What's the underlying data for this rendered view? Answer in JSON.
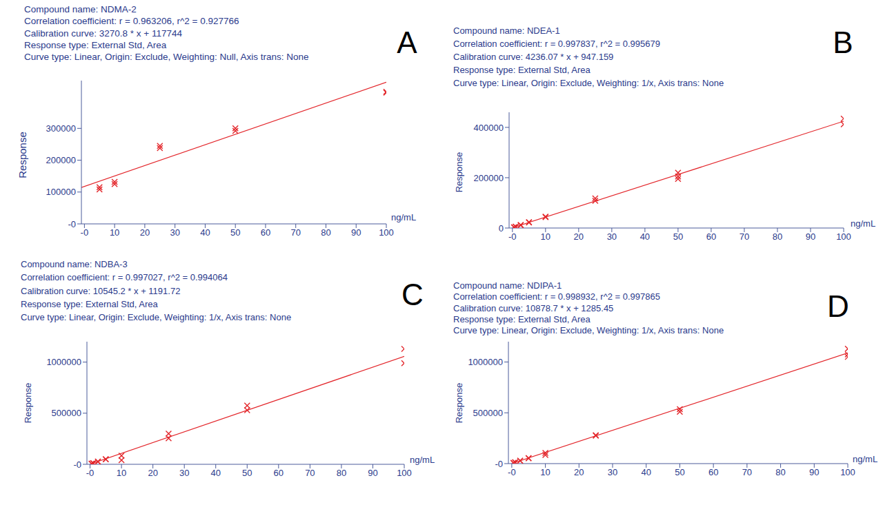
{
  "chart_data": [
    {
      "type": "scatter",
      "panel_label": "A",
      "title": "Compound name: NDMA-2",
      "annotations": [
        "Correlation coefficient: r = 0.963206, r^2 = 0.927766",
        "Calibration curve: 3270.8 * x + 117744",
        "Response type: External Std, Area",
        "Curve type: Linear, Origin: Exclude, Weighting: Null, Axis trans: None"
      ],
      "x_label": "ng/mL",
      "y_label": "Response",
      "grid": false,
      "xlim": [
        -1,
        100
      ],
      "xticks": [
        {
          "value": 0,
          "label": "-0"
        },
        10,
        20,
        30,
        40,
        50,
        60,
        70,
        80,
        90,
        100
      ],
      "ylim": [
        0,
        450000
      ],
      "yticks": [
        {
          "value": 0,
          "label": "-0"
        },
        100000,
        200000,
        300000
      ],
      "series": [
        {
          "type": "scatter",
          "marker": "x",
          "color": "#e3262b",
          "x": [
            5,
            5,
            10,
            10,
            25,
            25,
            50,
            50,
            100,
            100
          ],
          "values": [
            115000,
            108000,
            132000,
            125000,
            245000,
            238000,
            300000,
            292000,
            415000,
            412000
          ]
        },
        {
          "type": "line",
          "line_style": "solid",
          "color": "#e3262b",
          "x": [
            -1,
            100
          ],
          "values": [
            114500,
            444800
          ]
        }
      ]
    },
    {
      "type": "scatter",
      "panel_label": "B",
      "title": "Compound name: NDEA-1",
      "annotations": [
        "Correlation coefficient: r = 0.997837, r^2 = 0.995679",
        "Calibration curve: 4236.07 * x + 947.159",
        "Response type: External Std, Area",
        "Curve type: Linear, Origin: Exclude, Weighting: 1/x, Axis trans: None"
      ],
      "x_label": "ng/mL",
      "y_label": "Response",
      "grid": false,
      "xlim": [
        -1,
        100
      ],
      "xticks": [
        {
          "value": 0,
          "label": "-0"
        },
        10,
        20,
        30,
        40,
        50,
        60,
        70,
        80,
        90,
        100
      ],
      "ylim": [
        0,
        460000
      ],
      "yticks": [
        0,
        200000,
        400000
      ],
      "series": [
        {
          "type": "scatter",
          "marker": "x",
          "color": "#e3262b",
          "x": [
            0.5,
            0.5,
            1,
            1,
            2.5,
            2.5,
            5,
            5,
            10,
            10,
            25,
            25,
            50,
            50,
            50,
            100,
            100
          ],
          "values": [
            3000,
            2500,
            5000,
            5500,
            11000,
            12000,
            22000,
            23000,
            43000,
            45000,
            118000,
            108000,
            220000,
            195000,
            205000,
            435000,
            412000
          ]
        },
        {
          "type": "line",
          "line_style": "solid",
          "color": "#e3262b",
          "x": [
            0,
            100
          ],
          "values": [
            1000,
            424500
          ]
        }
      ]
    },
    {
      "type": "scatter",
      "panel_label": "C",
      "title": "Compound name: NDBA-3",
      "annotations": [
        "Correlation coefficient: r = 0.997027, r^2 = 0.994064",
        "Calibration curve: 10545.2 * x + 1191.72",
        "Response type: External Std, Area",
        "Curve type: Linear, Origin: Exclude, Weighting: 1/x, Axis trans: None"
      ],
      "x_label": "ng/mL",
      "y_label": "Response",
      "grid": false,
      "xlim": [
        -1,
        100
      ],
      "xticks": [
        {
          "value": 0,
          "label": "-0"
        },
        10,
        20,
        30,
        40,
        50,
        60,
        70,
        80,
        90,
        100
      ],
      "ylim": [
        0,
        1200000
      ],
      "yticks": [
        {
          "value": 0,
          "label": "-0"
        },
        500000,
        1000000
      ],
      "series": [
        {
          "type": "scatter",
          "marker": "x",
          "color": "#e3262b",
          "x": [
            0.5,
            0.5,
            1,
            1,
            2.5,
            2.5,
            5,
            5,
            10,
            10,
            25,
            25,
            50,
            50,
            100,
            100
          ],
          "values": [
            5000,
            6000,
            10000,
            12000,
            25000,
            27000,
            50000,
            48000,
            85000,
            40000,
            300000,
            255000,
            575000,
            530000,
            1130000,
            990000
          ]
        },
        {
          "type": "line",
          "line_style": "solid",
          "color": "#e3262b",
          "x": [
            0,
            100
          ],
          "values": [
            1200,
            1055700
          ]
        }
      ]
    },
    {
      "type": "scatter",
      "panel_label": "D",
      "title": "Compound name: NDIPA-1",
      "annotations": [
        "Correlation coefficient: r = 0.998932, r^2 = 0.997865",
        "Calibration curve: 10878.7 * x + 1285.45",
        "Response type: External Std, Area",
        "Curve type: Linear, Origin: Exclude, Weighting: 1/x, Axis trans: None"
      ],
      "x_label": "ng/mL",
      "y_label": "Response",
      "grid": false,
      "xlim": [
        -1,
        100
      ],
      "xticks": [
        {
          "value": 0,
          "label": "-0"
        },
        10,
        20,
        30,
        40,
        50,
        60,
        70,
        80,
        90,
        100
      ],
      "ylim": [
        0,
        1200000
      ],
      "yticks": [
        {
          "value": 0,
          "label": "-0"
        },
        500000,
        1000000
      ],
      "series": [
        {
          "type": "scatter",
          "marker": "x",
          "color": "#e3262b",
          "x": [
            0.5,
            0.5,
            1,
            1,
            2.5,
            2.5,
            5,
            5,
            10,
            10,
            25,
            25,
            50,
            50,
            100,
            100,
            100
          ],
          "values": [
            6000,
            7000,
            12000,
            13000,
            28000,
            29000,
            55000,
            53000,
            105000,
            85000,
            280000,
            275000,
            535000,
            510000,
            1130000,
            1075000,
            1050000
          ]
        },
        {
          "type": "line",
          "line_style": "solid",
          "color": "#e3262b",
          "x": [
            0,
            100
          ],
          "values": [
            1300,
            1089200
          ]
        }
      ]
    }
  ]
}
